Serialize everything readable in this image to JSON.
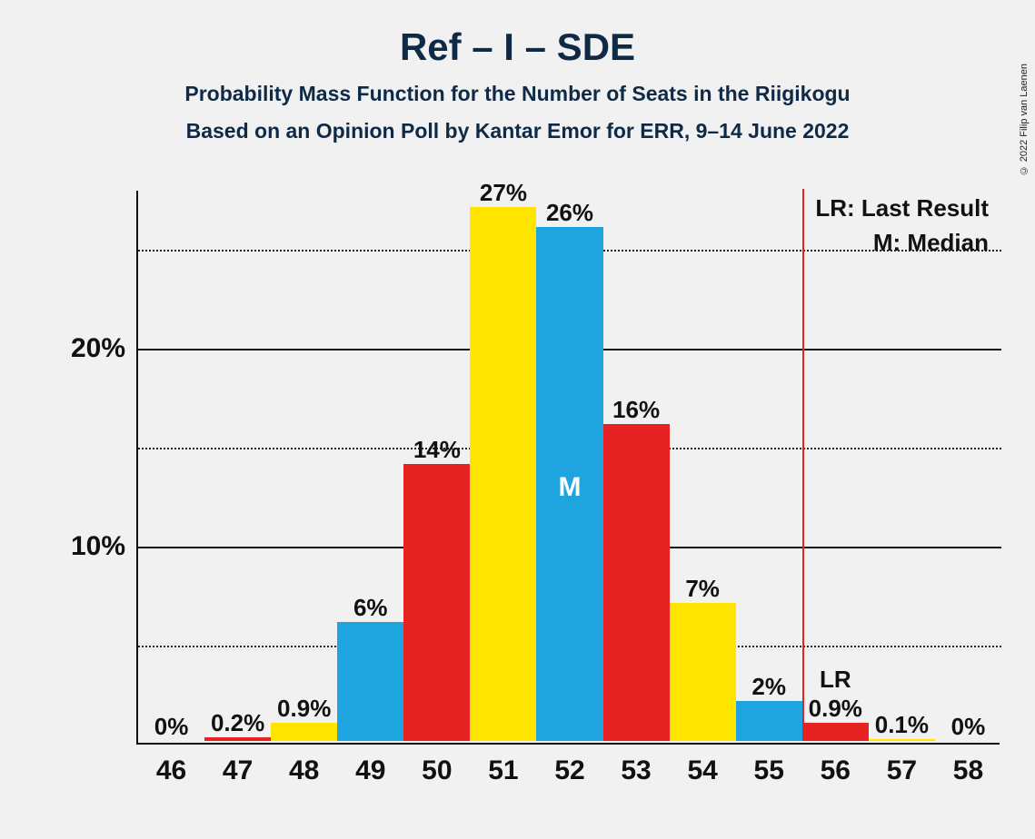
{
  "title": "Ref – I – SDE",
  "subtitle1": "Probability Mass Function for the Number of Seats in the Riigikogu",
  "subtitle2": "Based on an Opinion Poll by Kantar Emor for ERR, 9–14 June 2022",
  "copyright": "© 2022 Filip van Laenen",
  "legend": {
    "lr": "LR: Last Result",
    "m": "M: Median"
  },
  "median_marker": "M",
  "lr_marker": "LR",
  "chart": {
    "type": "bar",
    "background_color": "#f1f1f1",
    "axis_color": "#111111",
    "grid_major_color": "#111111",
    "grid_minor_color": "#222222",
    "bar_width_ratio": 1.0,
    "y_axis": {
      "min": 0,
      "max": 28,
      "major_ticks": [
        10,
        20
      ],
      "minor_ticks": [
        5,
        15,
        25
      ],
      "tick_labels": {
        "10": "10%",
        "20": "20%"
      }
    },
    "x_categories": [
      "46",
      "47",
      "48",
      "49",
      "50",
      "51",
      "52",
      "53",
      "54",
      "55",
      "56",
      "57",
      "58"
    ],
    "bars": [
      {
        "x": "46",
        "value": 0,
        "label": "0%",
        "color": "#e62222"
      },
      {
        "x": "47",
        "value": 0.2,
        "label": "0.2%",
        "color": "#e62222"
      },
      {
        "x": "48",
        "value": 0.9,
        "label": "0.9%",
        "color": "#ffe500"
      },
      {
        "x": "49",
        "value": 6,
        "label": "6%",
        "color": "#1ea5e0"
      },
      {
        "x": "50",
        "value": 14,
        "label": "14%",
        "color": "#e62222"
      },
      {
        "x": "51",
        "value": 27,
        "label": "27%",
        "color": "#ffe500"
      },
      {
        "x": "52",
        "value": 26,
        "label": "26%",
        "color": "#1ea5e0",
        "median": true
      },
      {
        "x": "53",
        "value": 16,
        "label": "16%",
        "color": "#e62222"
      },
      {
        "x": "54",
        "value": 7,
        "label": "7%",
        "color": "#ffe500"
      },
      {
        "x": "55",
        "value": 2,
        "label": "2%",
        "color": "#1ea5e0"
      },
      {
        "x": "56",
        "value": 0.9,
        "label": "0.9%",
        "color": "#e62222",
        "lr": true
      },
      {
        "x": "57",
        "value": 0.1,
        "label": "0.1%",
        "color": "#ffe500"
      },
      {
        "x": "58",
        "value": 0,
        "label": "0%",
        "color": "#1ea5e0"
      }
    ],
    "title_fontsize": 42,
    "subtitle_fontsize": 23,
    "axis_label_fontsize": 30,
    "bar_label_fontsize": 26,
    "title_color": "#0f2a47",
    "text_color": "#111111"
  }
}
